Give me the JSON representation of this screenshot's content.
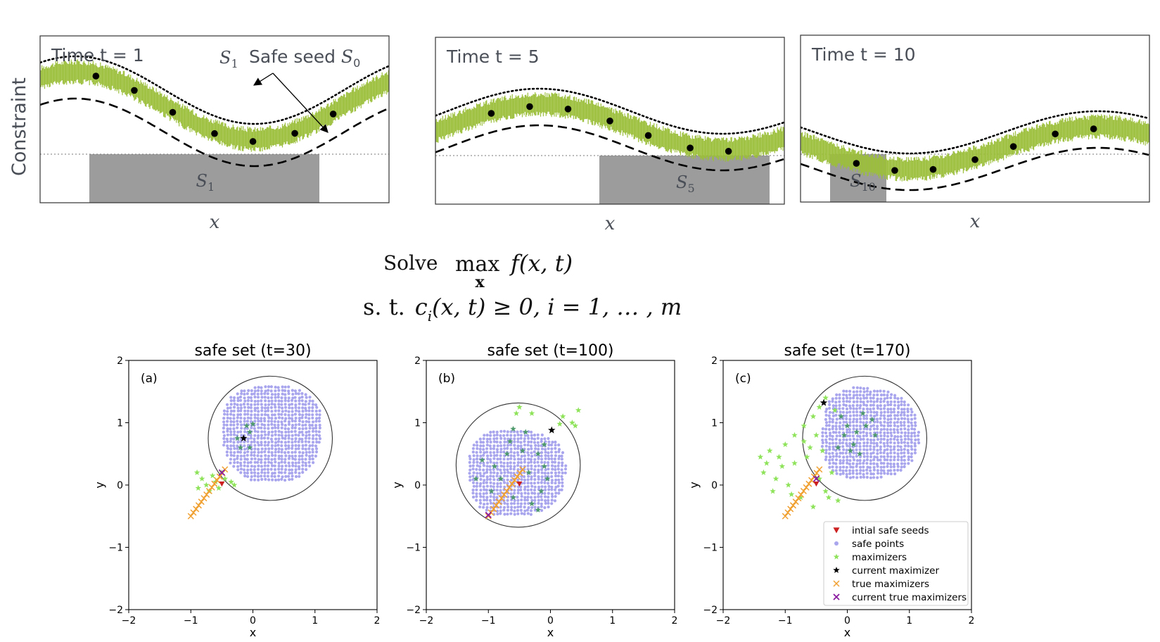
{
  "colors": {
    "band": "#9bbf3a",
    "safe_region": "#9c9c9c",
    "safe_points": "#a9a6ee",
    "maximizers": "#8ee35a",
    "maximizers_inside": "#4f9a6d",
    "seeds": "#cc1f1f",
    "current_maximizer": "#000000",
    "true_maximizers": "#f0a030",
    "current_true": "#8a1aa0",
    "text_dark": "#4a4f57"
  },
  "top": {
    "ylabel": "Constraint",
    "xlabel": "x",
    "panels": [
      {
        "id": "t1",
        "title": "Time t = 1",
        "label_prefix": "S",
        "label_sub": "1"
      },
      {
        "id": "t5",
        "title": "Time t = 5",
        "label_prefix": "S",
        "label_sub": "5"
      },
      {
        "id": "t10",
        "title": "Time t = 10",
        "label_prefix": "S",
        "label_sub": "10"
      }
    ],
    "annotation_s1_prefix": "S",
    "annotation_s1_sub": "1",
    "annotation_seed_text": "Safe seed ",
    "annotation_seed_prefix": "S",
    "annotation_seed_sub": "0"
  },
  "formula": {
    "solve": "Solve",
    "max": "max",
    "under": "x",
    "objective": "f(x, t)",
    "st": "s. t.",
    "constraint_c": "c",
    "constraint_sub": "i",
    "constraint_rest": "(x, t) ≥ 0, i = 1, … , m"
  },
  "chart_data": [
    {
      "type": "scatter",
      "title": "safe set (t=30)",
      "panel_label": "(a)",
      "xlabel": "x",
      "ylabel": "y",
      "xlim": [
        -2,
        2
      ],
      "ylim": [
        -2,
        2
      ],
      "xticks": [
        -2,
        -1,
        0,
        1,
        2
      ],
      "yticks": [
        -2,
        -1,
        0,
        1,
        2
      ],
      "tick_labels": [
        "−2",
        "−1",
        "0",
        "1",
        "2"
      ],
      "circle": {
        "cx": 0.28,
        "cy": 0.75,
        "r": 1.0
      },
      "safe_region": {
        "cx": 0.3,
        "cy": 0.83,
        "rx": 0.82,
        "ry": 0.8
      },
      "maximizers": [
        [
          -0.9,
          0.2
        ],
        [
          -0.82,
          0.1
        ],
        [
          -0.75,
          0.0
        ],
        [
          -0.7,
          -0.1
        ],
        [
          -0.6,
          0.05
        ],
        [
          -0.45,
          0.1
        ],
        [
          -0.35,
          0.05
        ],
        [
          -0.55,
          -0.05
        ],
        [
          -0.65,
          0.15
        ],
        [
          -0.88,
          -0.05
        ],
        [
          -0.3,
          0.0
        ],
        [
          -0.5,
          0.2
        ]
      ],
      "maximizers_inside": [
        [
          -0.1,
          0.95
        ],
        [
          -0.05,
          0.85
        ],
        [
          -0.2,
          0.6
        ],
        [
          -0.05,
          0.6
        ],
        [
          0.0,
          0.98
        ],
        [
          -0.25,
          0.75
        ]
      ],
      "seeds": [
        [
          -0.5,
          0.02
        ]
      ],
      "current_maximizer": [
        [
          -0.15,
          0.75
        ]
      ],
      "true_maximizers_line": {
        "from": [
          -1.0,
          -0.5
        ],
        "to": [
          -0.45,
          0.25
        ],
        "count": 14
      },
      "current_true": [
        [
          -0.5,
          0.2
        ]
      ]
    },
    {
      "type": "scatter",
      "title": "safe set (t=100)",
      "panel_label": "(b)",
      "xlabel": "x",
      "ylabel": "y",
      "xlim": [
        -2,
        2
      ],
      "ylim": [
        -2,
        2
      ],
      "xticks": [
        -2,
        -1,
        0,
        1,
        2
      ],
      "yticks": [
        -2,
        -1,
        0,
        1,
        2
      ],
      "tick_labels": [
        "−2",
        "−1",
        "0",
        "1",
        "2"
      ],
      "circle": {
        "cx": -0.52,
        "cy": 0.32,
        "r": 1.0
      },
      "safe_region": {
        "cx": -0.55,
        "cy": 0.2,
        "rx": 0.8,
        "ry": 0.72
      },
      "maximizers": [
        [
          -0.5,
          1.25
        ],
        [
          -0.55,
          1.15
        ],
        [
          0.2,
          1.1
        ],
        [
          0.35,
          1.0
        ],
        [
          0.45,
          1.2
        ],
        [
          0.4,
          0.95
        ],
        [
          0.15,
          0.98
        ],
        [
          -0.3,
          1.15
        ]
      ],
      "maximizers_inside": [
        [
          -0.6,
          0.9
        ],
        [
          -0.4,
          0.85
        ],
        [
          -0.2,
          0.5
        ],
        [
          -0.1,
          0.3
        ],
        [
          -0.15,
          -0.1
        ],
        [
          -0.3,
          -0.3
        ],
        [
          -0.7,
          0.5
        ],
        [
          -0.9,
          0.3
        ],
        [
          -1.1,
          0.4
        ],
        [
          -0.8,
          0.1
        ],
        [
          -0.45,
          0.55
        ],
        [
          -0.05,
          0.1
        ],
        [
          -0.35,
          0.2
        ],
        [
          -0.6,
          -0.2
        ],
        [
          -0.2,
          -0.4
        ],
        [
          -1.2,
          0.1
        ],
        [
          -0.95,
          -0.1
        ],
        [
          -0.1,
          0.65
        ],
        [
          -0.65,
          0.7
        ]
      ],
      "seeds": [
        [
          -0.5,
          0.02
        ]
      ],
      "current_maximizer": [
        [
          0.02,
          0.88
        ]
      ],
      "true_maximizers_line": {
        "from": [
          -1.0,
          -0.5
        ],
        "to": [
          -0.45,
          0.25
        ],
        "count": 14
      },
      "current_true": [
        [
          -1.0,
          -0.48
        ]
      ]
    },
    {
      "type": "scatter",
      "title": "safe set (t=170)",
      "panel_label": "(c)",
      "xlabel": "x",
      "ylabel": "y",
      "xlim": [
        -2,
        2
      ],
      "ylim": [
        -2,
        2
      ],
      "xticks": [
        -2,
        -1,
        0,
        1,
        2
      ],
      "yticks": [
        -2,
        -1,
        0,
        1,
        2
      ],
      "tick_labels": [
        "−2",
        "−1",
        "0",
        "1",
        "2"
      ],
      "circle": {
        "cx": 0.28,
        "cy": 0.75,
        "r": 1.0
      },
      "safe_region": {
        "cx": 0.35,
        "cy": 0.82,
        "rx": 0.8,
        "ry": 0.75
      },
      "maximizers": [
        [
          -1.4,
          0.45
        ],
        [
          -1.35,
          0.2
        ],
        [
          -1.25,
          0.55
        ],
        [
          -1.15,
          0.1
        ],
        [
          -1.05,
          0.3
        ],
        [
          -0.95,
          0.0
        ],
        [
          -0.85,
          0.35
        ],
        [
          -0.75,
          -0.2
        ],
        [
          -0.65,
          0.45
        ],
        [
          -0.55,
          -0.35
        ],
        [
          -0.45,
          0.1
        ],
        [
          -0.35,
          -0.1
        ],
        [
          -0.25,
          0.2
        ],
        [
          -0.15,
          -0.25
        ],
        [
          -1.2,
          -0.1
        ],
        [
          -1.0,
          0.65
        ],
        [
          -0.85,
          0.8
        ],
        [
          -0.7,
          0.95
        ],
        [
          -0.55,
          1.1
        ],
        [
          -0.45,
          1.25
        ],
        [
          -0.35,
          1.4
        ],
        [
          -0.7,
          0.7
        ],
        [
          -1.3,
          0.35
        ],
        [
          -0.6,
          0.6
        ],
        [
          -0.9,
          -0.15
        ],
        [
          -0.4,
          0.55
        ],
        [
          -0.2,
          1.2
        ],
        [
          -0.5,
          0.8
        ],
        [
          -1.1,
          0.45
        ],
        [
          -0.3,
          -0.2
        ]
      ],
      "maximizers_inside": [
        [
          0.0,
          0.95
        ],
        [
          -0.05,
          0.8
        ],
        [
          0.1,
          0.65
        ],
        [
          0.2,
          0.5
        ],
        [
          0.3,
          0.95
        ],
        [
          0.4,
          1.05
        ],
        [
          -0.1,
          1.1
        ],
        [
          0.05,
          0.55
        ],
        [
          -0.15,
          0.6
        ],
        [
          0.15,
          0.85
        ],
        [
          0.25,
          1.15
        ],
        [
          0.45,
          0.8
        ]
      ],
      "seeds": [
        [
          -0.5,
          0.02
        ]
      ],
      "current_maximizer": [
        [
          -0.38,
          1.32
        ]
      ],
      "true_maximizers_line": {
        "from": [
          -1.0,
          -0.5
        ],
        "to": [
          -0.45,
          0.25
        ],
        "count": 14
      },
      "current_true": [
        [
          -0.5,
          0.1
        ]
      ],
      "legend": {
        "placement": "lower-right",
        "entries": [
          {
            "key": "seeds",
            "label": "intial safe seeds"
          },
          {
            "key": "safe_points",
            "label": "safe points"
          },
          {
            "key": "maximizers",
            "label": "maximizers"
          },
          {
            "key": "current_maximizer",
            "label": "current maximizer"
          },
          {
            "key": "true_maximizers",
            "label": "true maximizers"
          },
          {
            "key": "current_true",
            "label": "current true maximizers"
          }
        ]
      }
    }
  ]
}
